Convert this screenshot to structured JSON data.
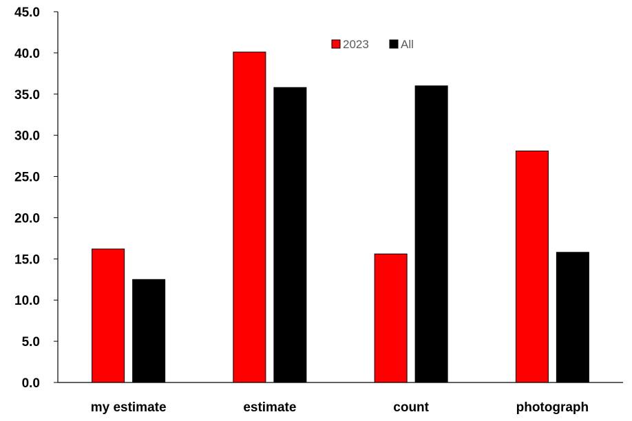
{
  "chart_data": {
    "type": "bar",
    "categories": [
      "my estimate",
      "estimate",
      "count",
      "photograph"
    ],
    "series": [
      {
        "name": "2023",
        "color": "#ff0000",
        "values": [
          16.2,
          40.1,
          15.6,
          28.1
        ]
      },
      {
        "name": "All",
        "color": "#000000",
        "values": [
          12.5,
          35.8,
          36.0,
          15.8
        ]
      }
    ],
    "ylim": [
      0,
      45
    ],
    "yticks": [
      "0.0",
      "5.0",
      "10.0",
      "15.0",
      "20.0",
      "25.0",
      "30.0",
      "35.0",
      "40.0",
      "45.0"
    ],
    "ytick_values": [
      0,
      5,
      10,
      15,
      20,
      25,
      30,
      35,
      40,
      45
    ],
    "legend_position": "top-center",
    "grid": false
  }
}
